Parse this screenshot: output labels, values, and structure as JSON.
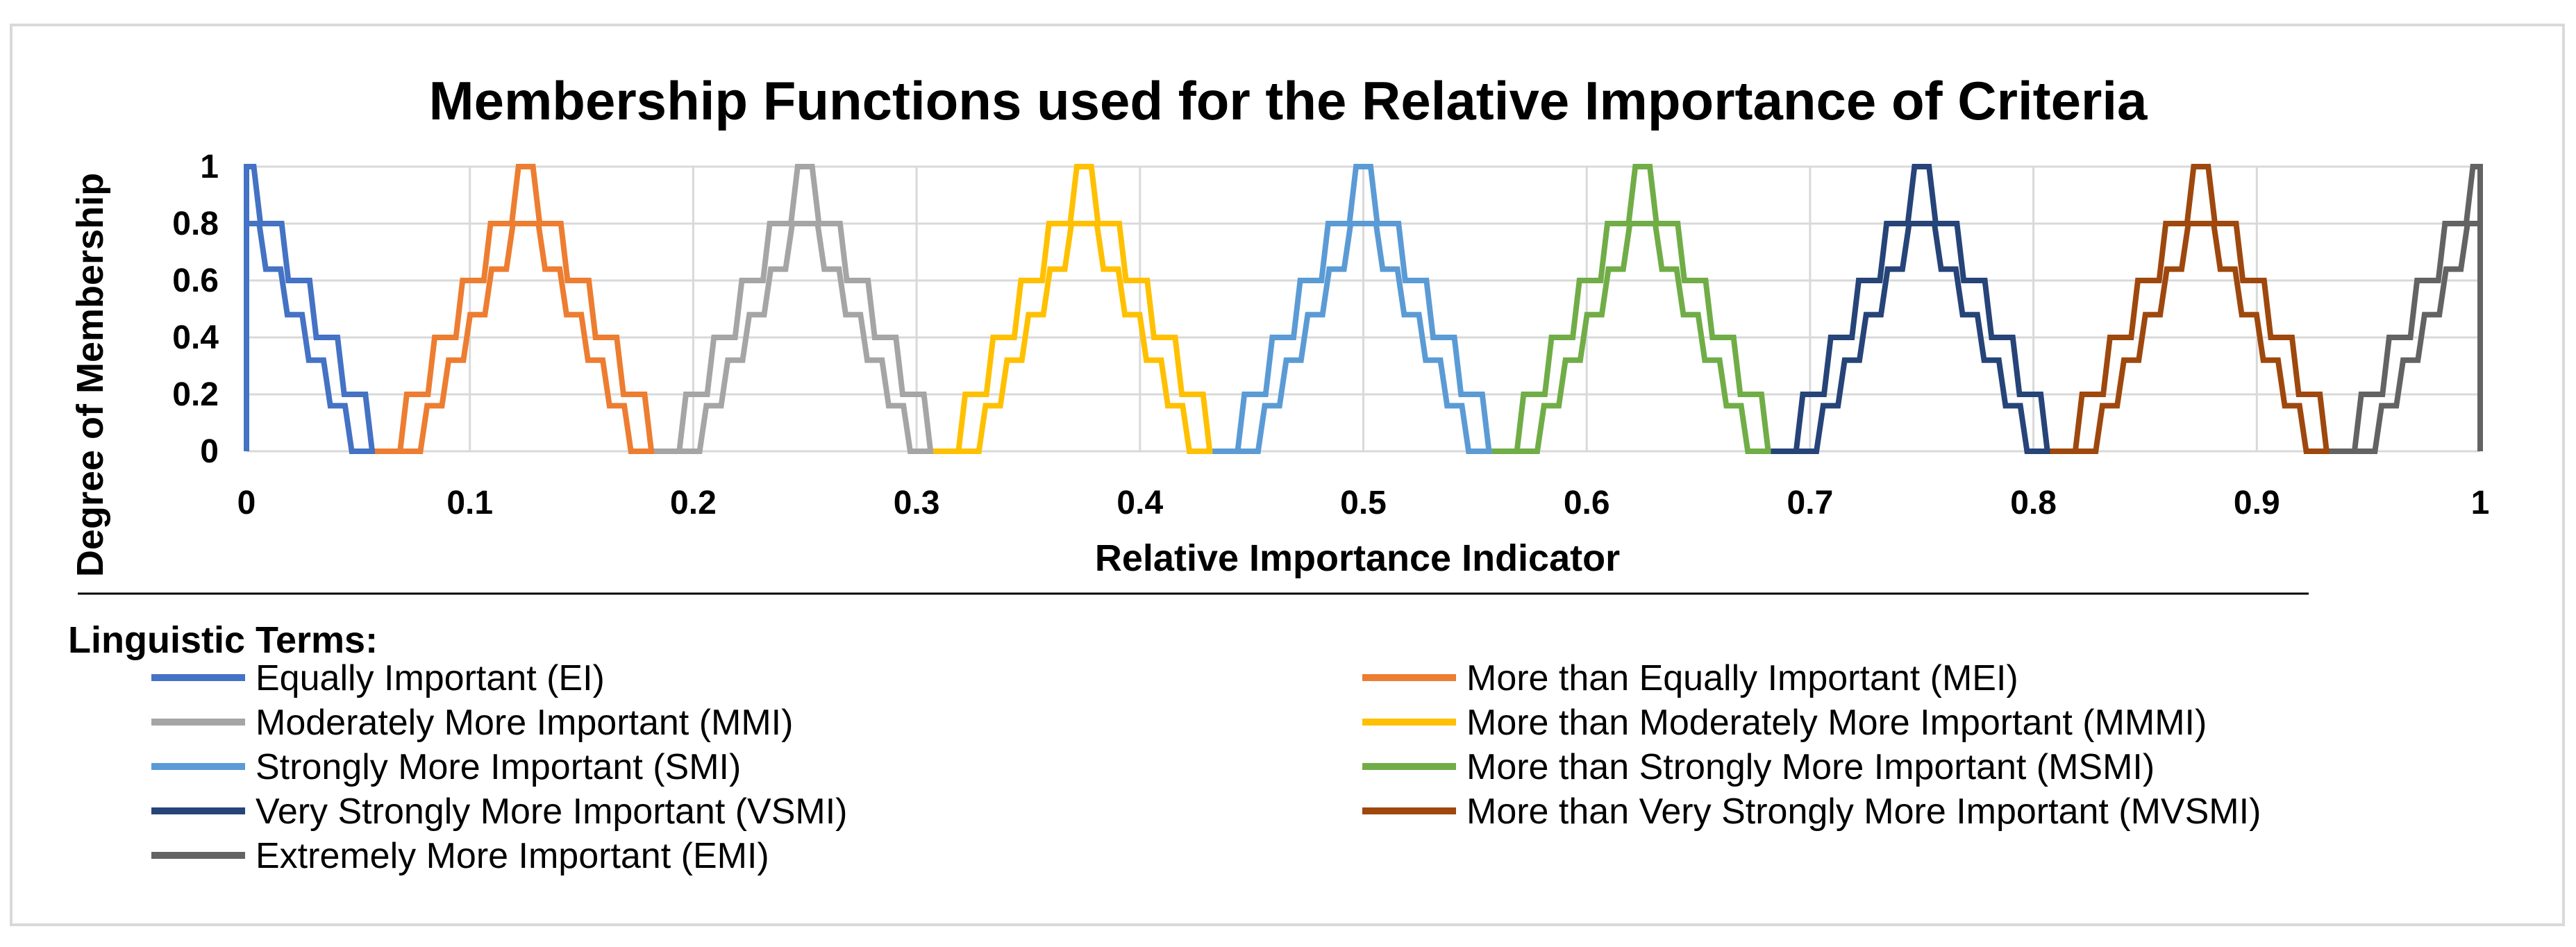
{
  "chart_data": {
    "type": "line",
    "title": "Membership Functions used for the Relative Importance of Criteria",
    "xlabel": "Relative Importance Indicator",
    "ylabel": "Degree of Membership",
    "xlim": [
      0,
      1
    ],
    "ylim": [
      0,
      1
    ],
    "x_ticks": [
      "0",
      "0.1",
      "0.2",
      "0.3",
      "0.4",
      "0.5",
      "0.6",
      "0.7",
      "0.8",
      "0.9",
      "1"
    ],
    "y_ticks": [
      "0",
      "0.2",
      "0.4",
      "0.6",
      "0.8",
      "1"
    ],
    "grid": true,
    "legend_title": "Linguistic Terms:",
    "series": [
      {
        "name": "Equally Important (EI)",
        "color": "#4472C4",
        "center": 0,
        "x": [
          0,
          0.0625
        ],
        "upper": [
          1,
          0
        ],
        "lower": [
          0.8,
          0
        ]
      },
      {
        "name": "More than Equally Important (MEI)",
        "color": "#ED7D31",
        "center": 0.125,
        "x": [
          0.0625,
          0.125,
          0.1875
        ],
        "upper": [
          0,
          1,
          0
        ],
        "lower": [
          0,
          0.8,
          0
        ]
      },
      {
        "name": "Moderately More Important (MMI)",
        "color": "#A5A5A5",
        "center": 0.25,
        "x": [
          0.1875,
          0.25,
          0.3125
        ],
        "upper": [
          0,
          1,
          0
        ],
        "lower": [
          0,
          0.8,
          0
        ]
      },
      {
        "name": "More than Moderately More Important (MMMI)",
        "color": "#FFC000",
        "center": 0.375,
        "x": [
          0.3125,
          0.375,
          0.4375
        ],
        "upper": [
          0,
          1,
          0
        ],
        "lower": [
          0,
          0.8,
          0
        ]
      },
      {
        "name": "Strongly More Important (SMI)",
        "color": "#5B9BD5",
        "center": 0.5,
        "x": [
          0.4375,
          0.5,
          0.5625
        ],
        "upper": [
          0,
          1,
          0
        ],
        "lower": [
          0,
          0.8,
          0
        ]
      },
      {
        "name": "More than Strongly More Important (MSMI)",
        "color": "#70AD47",
        "center": 0.625,
        "x": [
          0.5625,
          0.625,
          0.6875
        ],
        "upper": [
          0,
          1,
          0
        ],
        "lower": [
          0,
          0.8,
          0
        ]
      },
      {
        "name": "Very Strongly More Important (VSMI)",
        "color": "#264478",
        "center": 0.75,
        "x": [
          0.6875,
          0.75,
          0.8125
        ],
        "upper": [
          0,
          1,
          0
        ],
        "lower": [
          0,
          0.8,
          0
        ]
      },
      {
        "name": "More than Very Strongly More Important (MVSMI)",
        "color": "#9E480E",
        "center": 0.875,
        "x": [
          0.8125,
          0.875,
          0.9375
        ],
        "upper": [
          0,
          1,
          0
        ],
        "lower": [
          0,
          0.8,
          0
        ]
      },
      {
        "name": "Extremely More Important (EMI)",
        "color": "#636363",
        "center": 1,
        "x": [
          0.9375,
          1
        ],
        "upper": [
          0,
          1
        ],
        "lower": [
          0,
          0.8
        ]
      }
    ]
  }
}
